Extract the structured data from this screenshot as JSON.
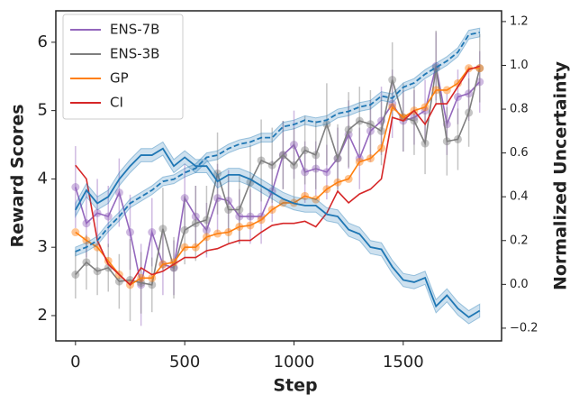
{
  "chart_data": {
    "type": "line",
    "xlabel": "Step",
    "ylabel": "Reward Scores",
    "y2label": "Normalized Uncertainty",
    "xlim": [
      -90,
      1950
    ],
    "xticks": [
      0,
      500,
      1000,
      1500
    ],
    "ylim": [
      1.63,
      6.46
    ],
    "yticks": [
      2,
      3,
      4,
      5,
      6
    ],
    "y2lim": [
      -0.258,
      1.249
    ],
    "y2ticks": [
      {
        "value": -0.2,
        "label": "−0.2"
      },
      {
        "value": 0.0,
        "label": "0.0"
      },
      0.2,
      0.4,
      0.6,
      0.8,
      {
        "value": 1.0,
        "label": "1.0"
      },
      1.2
    ],
    "legend": "upper left",
    "x": [
      0,
      50,
      100,
      150,
      200,
      250,
      300,
      350,
      400,
      450,
      500,
      550,
      600,
      650,
      700,
      750,
      800,
      850,
      900,
      950,
      1000,
      1050,
      1100,
      1150,
      1200,
      1250,
      1300,
      1350,
      1400,
      1450,
      1500,
      1550,
      1600,
      1650,
      1700,
      1750,
      1800,
      1850
    ],
    "series": [
      {
        "name": "ENS-7B",
        "color": "#9467bd",
        "markers": true,
        "values": [
          3.88,
          3.35,
          3.5,
          3.45,
          3.8,
          3.22,
          2.45,
          3.22,
          2.75,
          2.7,
          3.72,
          3.45,
          3.25,
          3.72,
          3.68,
          3.45,
          3.45,
          3.45,
          3.82,
          4.35,
          4.5,
          4.1,
          4.15,
          4.1,
          4.3,
          4.65,
          4.3,
          4.7,
          4.85,
          5.1,
          4.85,
          4.9,
          5.0,
          5.65,
          4.8,
          5.2,
          5.25,
          5.42
        ],
        "errors": [
          0.6,
          0.5,
          0.5,
          0.45,
          0.5,
          0.55,
          0.6,
          0.5,
          0.45,
          0.4,
          0.5,
          0.45,
          0.4,
          0.5,
          0.45,
          0.4,
          0.4,
          0.4,
          0.45,
          0.5,
          0.5,
          0.45,
          0.4,
          0.4,
          0.45,
          0.5,
          0.45,
          0.45,
          0.5,
          0.5,
          0.45,
          0.4,
          0.45,
          0.5,
          0.45,
          0.4,
          0.4,
          0.45
        ]
      },
      {
        "name": "ENS-3B",
        "color": "#7f7f7f",
        "markers": true,
        "values": [
          2.6,
          2.78,
          2.65,
          2.7,
          2.5,
          2.52,
          2.48,
          2.45,
          3.27,
          2.7,
          3.25,
          3.35,
          3.4,
          4.08,
          3.55,
          3.55,
          3.95,
          4.27,
          4.2,
          4.35,
          4.2,
          4.42,
          4.35,
          4.8,
          4.3,
          4.72,
          4.85,
          4.8,
          4.7,
          5.45,
          4.9,
          4.85,
          4.52,
          5.62,
          4.55,
          4.58,
          4.97,
          5.62
        ],
        "errors": [
          0.35,
          0.4,
          0.35,
          0.35,
          0.4,
          0.6,
          0.45,
          0.4,
          0.6,
          0.45,
          0.5,
          0.55,
          0.5,
          0.6,
          0.5,
          0.5,
          0.55,
          0.6,
          0.55,
          0.5,
          0.55,
          0.5,
          0.5,
          0.6,
          0.5,
          0.55,
          0.5,
          0.5,
          0.5,
          0.55,
          0.5,
          0.5,
          0.45,
          0.55,
          0.5,
          0.45,
          0.5,
          0.5
        ]
      },
      {
        "name": "GP",
        "color": "#ff7f0e",
        "markers": true,
        "values": [
          3.22,
          3.1,
          3.0,
          2.8,
          2.6,
          2.45,
          2.55,
          2.55,
          2.75,
          2.78,
          3.0,
          3.0,
          3.15,
          3.2,
          3.22,
          3.3,
          3.32,
          3.4,
          3.55,
          3.65,
          3.65,
          3.75,
          3.7,
          3.85,
          3.95,
          4.0,
          4.25,
          4.3,
          4.45,
          5.05,
          4.9,
          5.0,
          5.05,
          5.3,
          5.3,
          5.4,
          5.62,
          5.62
        ]
      },
      {
        "name": "CI",
        "color": "#d62728",
        "markers": false,
        "values": [
          4.2,
          4.0,
          3.1,
          2.75,
          2.6,
          2.45,
          2.7,
          2.6,
          2.65,
          2.75,
          2.85,
          2.85,
          2.95,
          2.98,
          3.05,
          3.1,
          3.1,
          3.22,
          3.32,
          3.35,
          3.35,
          3.38,
          3.3,
          3.5,
          3.82,
          3.65,
          3.78,
          3.85,
          4.0,
          4.9,
          4.85,
          5.0,
          4.8,
          5.1,
          5.1,
          5.35,
          5.6,
          5.65
        ]
      },
      {
        "color": "#1f77b4",
        "axis": "y2",
        "dash": false,
        "band": 0.03,
        "values": [
          0.34,
          0.43,
          0.37,
          0.4,
          0.48,
          0.54,
          0.59,
          0.59,
          0.62,
          0.54,
          0.58,
          0.54,
          0.54,
          0.47,
          0.5,
          0.5,
          0.48,
          0.45,
          0.42,
          0.39,
          0.37,
          0.36,
          0.36,
          0.32,
          0.31,
          0.25,
          0.23,
          0.17,
          0.16,
          0.08,
          0.02,
          0.01,
          0.03,
          -0.1,
          -0.05,
          -0.11,
          -0.15,
          -0.12
        ]
      },
      {
        "color": "#1f77b4",
        "axis": "y2",
        "dash": true,
        "band": 0.02,
        "values": [
          0.15,
          0.17,
          0.2,
          0.26,
          0.31,
          0.37,
          0.4,
          0.43,
          0.47,
          0.48,
          0.51,
          0.53,
          0.58,
          0.59,
          0.62,
          0.64,
          0.65,
          0.67,
          0.67,
          0.72,
          0.73,
          0.75,
          0.74,
          0.75,
          0.78,
          0.79,
          0.81,
          0.82,
          0.86,
          0.85,
          0.9,
          0.92,
          0.96,
          0.99,
          1.02,
          1.06,
          1.14,
          1.15
        ]
      }
    ]
  }
}
